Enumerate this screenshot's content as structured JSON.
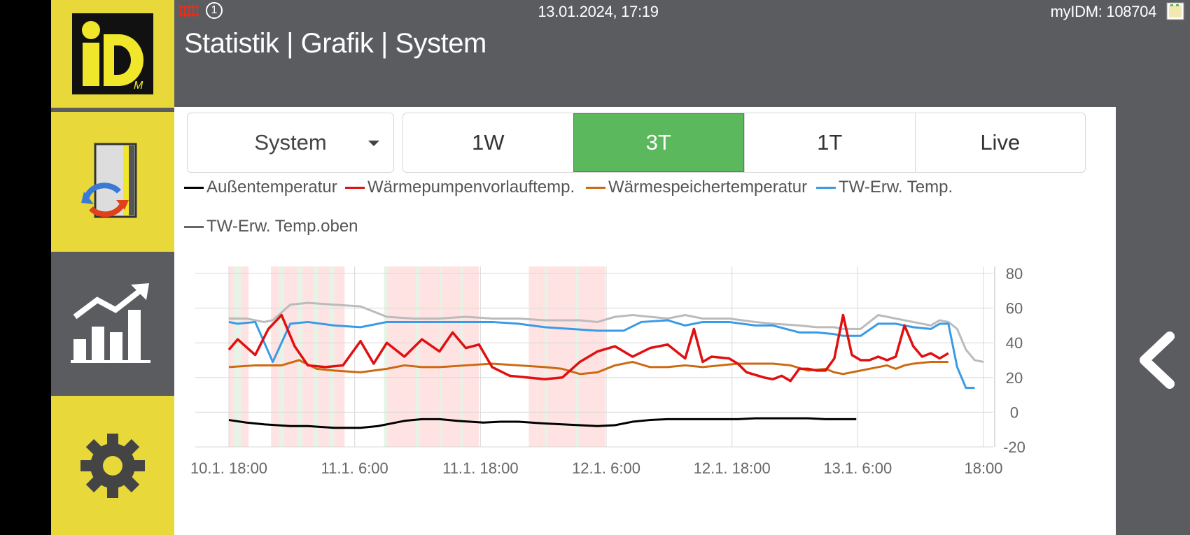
{
  "status": {
    "heating_icon": "heating-icon",
    "badge": "1",
    "datetime": "13.01.2024, 17:19",
    "account": "myIDM: 108704",
    "network_icon": "network-icon"
  },
  "header": {
    "title": "Statistik | Grafik | System"
  },
  "sidebar": {
    "logo_text": "iD",
    "logo_sub": "M",
    "items": [
      {
        "name": "logo",
        "icon": "idm-logo"
      },
      {
        "name": "sync",
        "icon": "sync-icon"
      },
      {
        "name": "statistics",
        "icon": "chart-icon"
      },
      {
        "name": "settings",
        "icon": "gear-icon"
      }
    ]
  },
  "controls": {
    "dropdown_value": "System",
    "ranges": [
      {
        "label": "1W",
        "active": false
      },
      {
        "label": "3T",
        "active": true
      },
      {
        "label": "1T",
        "active": false
      },
      {
        "label": "Live",
        "active": false
      }
    ]
  },
  "colors": {
    "accent_yellow": "#e8d83a",
    "active_green": "#5cb85c",
    "band_red": "#ffe3e3",
    "band_green": "#e6f3e6"
  },
  "chart_data": {
    "type": "line",
    "x_ticks": [
      "10.1. 18:00",
      "11.1. 6:00",
      "11.1. 18:00",
      "12.1. 6:00",
      "12.1. 18:00",
      "13.1. 6:00",
      "18:00"
    ],
    "x_range_hours": [
      0,
      72
    ],
    "y_ticks": [
      "80",
      "60",
      "40",
      "20",
      "0",
      "-20"
    ],
    "ylim": [
      -20,
      80
    ],
    "grid": true,
    "legend_position": "top",
    "series": [
      {
        "name": "Außentemperatur",
        "color": "#000000",
        "points": [
          [
            0,
            -4.5
          ],
          [
            2,
            -6
          ],
          [
            4,
            -7
          ],
          [
            7,
            -8
          ],
          [
            9,
            -8
          ],
          [
            12,
            -9
          ],
          [
            15,
            -9
          ],
          [
            17,
            -8
          ],
          [
            20,
            -5
          ],
          [
            22,
            -4
          ],
          [
            24,
            -4
          ],
          [
            26,
            -5
          ],
          [
            29,
            -6
          ],
          [
            31,
            -5.5
          ],
          [
            33,
            -5.5
          ],
          [
            36,
            -6.5
          ],
          [
            38,
            -7
          ],
          [
            40,
            -7.5
          ],
          [
            42,
            -8
          ],
          [
            44,
            -7.5
          ],
          [
            46,
            -5.5
          ],
          [
            48,
            -4.5
          ],
          [
            50,
            -4
          ],
          [
            53,
            -4
          ],
          [
            58,
            -4
          ],
          [
            60,
            -3.5
          ],
          [
            66,
            -3.5
          ],
          [
            68,
            -4
          ],
          [
            71.5,
            -4
          ]
        ]
      },
      {
        "name": "Wärmepumpenvorlauftemp.",
        "color": "#e01010",
        "points": [
          [
            0,
            36
          ],
          [
            1,
            42
          ],
          [
            3,
            33
          ],
          [
            4.5,
            48
          ],
          [
            6,
            56
          ],
          [
            7.5,
            38
          ],
          [
            9,
            27
          ],
          [
            11,
            26
          ],
          [
            13,
            27
          ],
          [
            15,
            41
          ],
          [
            16.5,
            28
          ],
          [
            18,
            40
          ],
          [
            20,
            32
          ],
          [
            22,
            42
          ],
          [
            24,
            35
          ],
          [
            25.5,
            46
          ],
          [
            27,
            37
          ],
          [
            28.5,
            39
          ],
          [
            30,
            26
          ],
          [
            32,
            21
          ],
          [
            34,
            20
          ],
          [
            36,
            19
          ],
          [
            38,
            20
          ],
          [
            40,
            29
          ],
          [
            42,
            35
          ],
          [
            44,
            38
          ],
          [
            46,
            32
          ],
          [
            48,
            37
          ],
          [
            50,
            39
          ],
          [
            52,
            31
          ],
          [
            53,
            48
          ],
          [
            54,
            29
          ],
          [
            55,
            32
          ],
          [
            57,
            31
          ],
          [
            58,
            28
          ],
          [
            59,
            23
          ],
          [
            61,
            20
          ],
          [
            62,
            19
          ],
          [
            63,
            21
          ],
          [
            64,
            18
          ],
          [
            65,
            25
          ],
          [
            66,
            25
          ],
          [
            67,
            24
          ],
          [
            68,
            24
          ],
          [
            69,
            31
          ],
          [
            70,
            56
          ],
          [
            71,
            33
          ],
          [
            72,
            30
          ],
          [
            73,
            30
          ],
          [
            74,
            32
          ],
          [
            75,
            30
          ],
          [
            76,
            32
          ],
          [
            77,
            50
          ],
          [
            78,
            38
          ],
          [
            79,
            32
          ],
          [
            80,
            34
          ],
          [
            81,
            31
          ],
          [
            82,
            34
          ]
        ]
      },
      {
        "name": "Wärmespeichertemperatur",
        "color": "#cc6a12",
        "points": [
          [
            0,
            26
          ],
          [
            3,
            27
          ],
          [
            6,
            27
          ],
          [
            8,
            30
          ],
          [
            10,
            25
          ],
          [
            12,
            24
          ],
          [
            15,
            23
          ],
          [
            18,
            25
          ],
          [
            20,
            27
          ],
          [
            22,
            26
          ],
          [
            24,
            26
          ],
          [
            27,
            27
          ],
          [
            30,
            28
          ],
          [
            33,
            27
          ],
          [
            36,
            26
          ],
          [
            38,
            25
          ],
          [
            40,
            22
          ],
          [
            42,
            23
          ],
          [
            44,
            27
          ],
          [
            46,
            29
          ],
          [
            48,
            26
          ],
          [
            50,
            26
          ],
          [
            52,
            27
          ],
          [
            54,
            26
          ],
          [
            56,
            27
          ],
          [
            58,
            28
          ],
          [
            62,
            28
          ],
          [
            64,
            27
          ],
          [
            66,
            24
          ],
          [
            68,
            25
          ],
          [
            69,
            23
          ],
          [
            70,
            22
          ],
          [
            72,
            24
          ],
          [
            74,
            26
          ],
          [
            75,
            27
          ],
          [
            76,
            25
          ],
          [
            77,
            27
          ],
          [
            78,
            28
          ],
          [
            80,
            29
          ],
          [
            82,
            29
          ]
        ]
      },
      {
        "name": "TW-Erw. Temp.",
        "color": "#3a9ae6",
        "points": [
          [
            0,
            52
          ],
          [
            1,
            51
          ],
          [
            3,
            52
          ],
          [
            5,
            29
          ],
          [
            7,
            51
          ],
          [
            9,
            52
          ],
          [
            12,
            50
          ],
          [
            15,
            49
          ],
          [
            18,
            52
          ],
          [
            21,
            52
          ],
          [
            24,
            52
          ],
          [
            27,
            52
          ],
          [
            30,
            52
          ],
          [
            33,
            51
          ],
          [
            36,
            49
          ],
          [
            39,
            48
          ],
          [
            42,
            47
          ],
          [
            45,
            47
          ],
          [
            47,
            52
          ],
          [
            50,
            53
          ],
          [
            52,
            50
          ],
          [
            54,
            52
          ],
          [
            57,
            52
          ],
          [
            60,
            50
          ],
          [
            62,
            50
          ],
          [
            65,
            46
          ],
          [
            67,
            46
          ],
          [
            69,
            45
          ],
          [
            70,
            44
          ],
          [
            72,
            44
          ],
          [
            74,
            51
          ],
          [
            76,
            51
          ],
          [
            78,
            49
          ],
          [
            80,
            48
          ],
          [
            81,
            51
          ],
          [
            82,
            51
          ],
          [
            83,
            26
          ],
          [
            84,
            14
          ],
          [
            85,
            14
          ]
        ]
      },
      {
        "name": "TW-Erw. Temp.oben",
        "color": "#bbbbbb",
        "points": [
          [
            0,
            54
          ],
          [
            2,
            54
          ],
          [
            4,
            52
          ],
          [
            5,
            53
          ],
          [
            7,
            62
          ],
          [
            9,
            63
          ],
          [
            12,
            62
          ],
          [
            15,
            61
          ],
          [
            18,
            55
          ],
          [
            21,
            54
          ],
          [
            24,
            54
          ],
          [
            27,
            55
          ],
          [
            30,
            54
          ],
          [
            33,
            54
          ],
          [
            36,
            53
          ],
          [
            40,
            53
          ],
          [
            42,
            52
          ],
          [
            44,
            55
          ],
          [
            46,
            56
          ],
          [
            48,
            55
          ],
          [
            50,
            54
          ],
          [
            52,
            56
          ],
          [
            54,
            54
          ],
          [
            57,
            54
          ],
          [
            60,
            52
          ],
          [
            62,
            51
          ],
          [
            65,
            50
          ],
          [
            67,
            49
          ],
          [
            69,
            49
          ],
          [
            70,
            48
          ],
          [
            72,
            48
          ],
          [
            74,
            56
          ],
          [
            76,
            54
          ],
          [
            78,
            52
          ],
          [
            80,
            50
          ],
          [
            81,
            53
          ],
          [
            82,
            52
          ],
          [
            83,
            48
          ],
          [
            84,
            36
          ],
          [
            85,
            30
          ],
          [
            86,
            29
          ]
        ]
      }
    ],
    "bands": [
      {
        "type": "red",
        "from": 0,
        "to": 2
      },
      {
        "type": "green",
        "from": 2,
        "to": 4.5
      },
      {
        "type": "red",
        "from": 4.5,
        "to": 6
      },
      {
        "type": "red",
        "from": 16,
        "to": 19
      },
      {
        "type": "green",
        "from": 19,
        "to": 21
      },
      {
        "type": "red",
        "from": 21,
        "to": 26
      },
      {
        "type": "green",
        "from": 26,
        "to": 28
      },
      {
        "type": "red",
        "from": 28,
        "to": 32
      },
      {
        "type": "green",
        "from": 32,
        "to": 34
      },
      {
        "type": "red",
        "from": 34,
        "to": 38
      },
      {
        "type": "green",
        "from": 38,
        "to": 40
      },
      {
        "type": "red",
        "from": 40,
        "to": 42
      },
      {
        "type": "green",
        "from": 59,
        "to": 60.5
      },
      {
        "type": "red",
        "from": 60.5,
        "to": 71
      },
      {
        "type": "green",
        "from": 71,
        "to": 72.5
      },
      {
        "type": "red",
        "from": 72.5,
        "to": 80
      },
      {
        "type": "green",
        "from": 80,
        "to": 81
      },
      {
        "type": "red",
        "from": 81,
        "to": 88
      },
      {
        "type": "green",
        "from": 88,
        "to": 89
      },
      {
        "type": "red",
        "from": 89,
        "to": 90
      },
      {
        "type": "red",
        "from": 114,
        "to": 115.5
      },
      {
        "type": "red",
        "from": 117,
        "to": 120
      },
      {
        "type": "green",
        "from": 120,
        "to": 121
      },
      {
        "type": "red",
        "from": 121,
        "to": 132
      },
      {
        "type": "green",
        "from": 132,
        "to": 133
      },
      {
        "type": "red",
        "from": 133,
        "to": 138
      }
    ]
  }
}
